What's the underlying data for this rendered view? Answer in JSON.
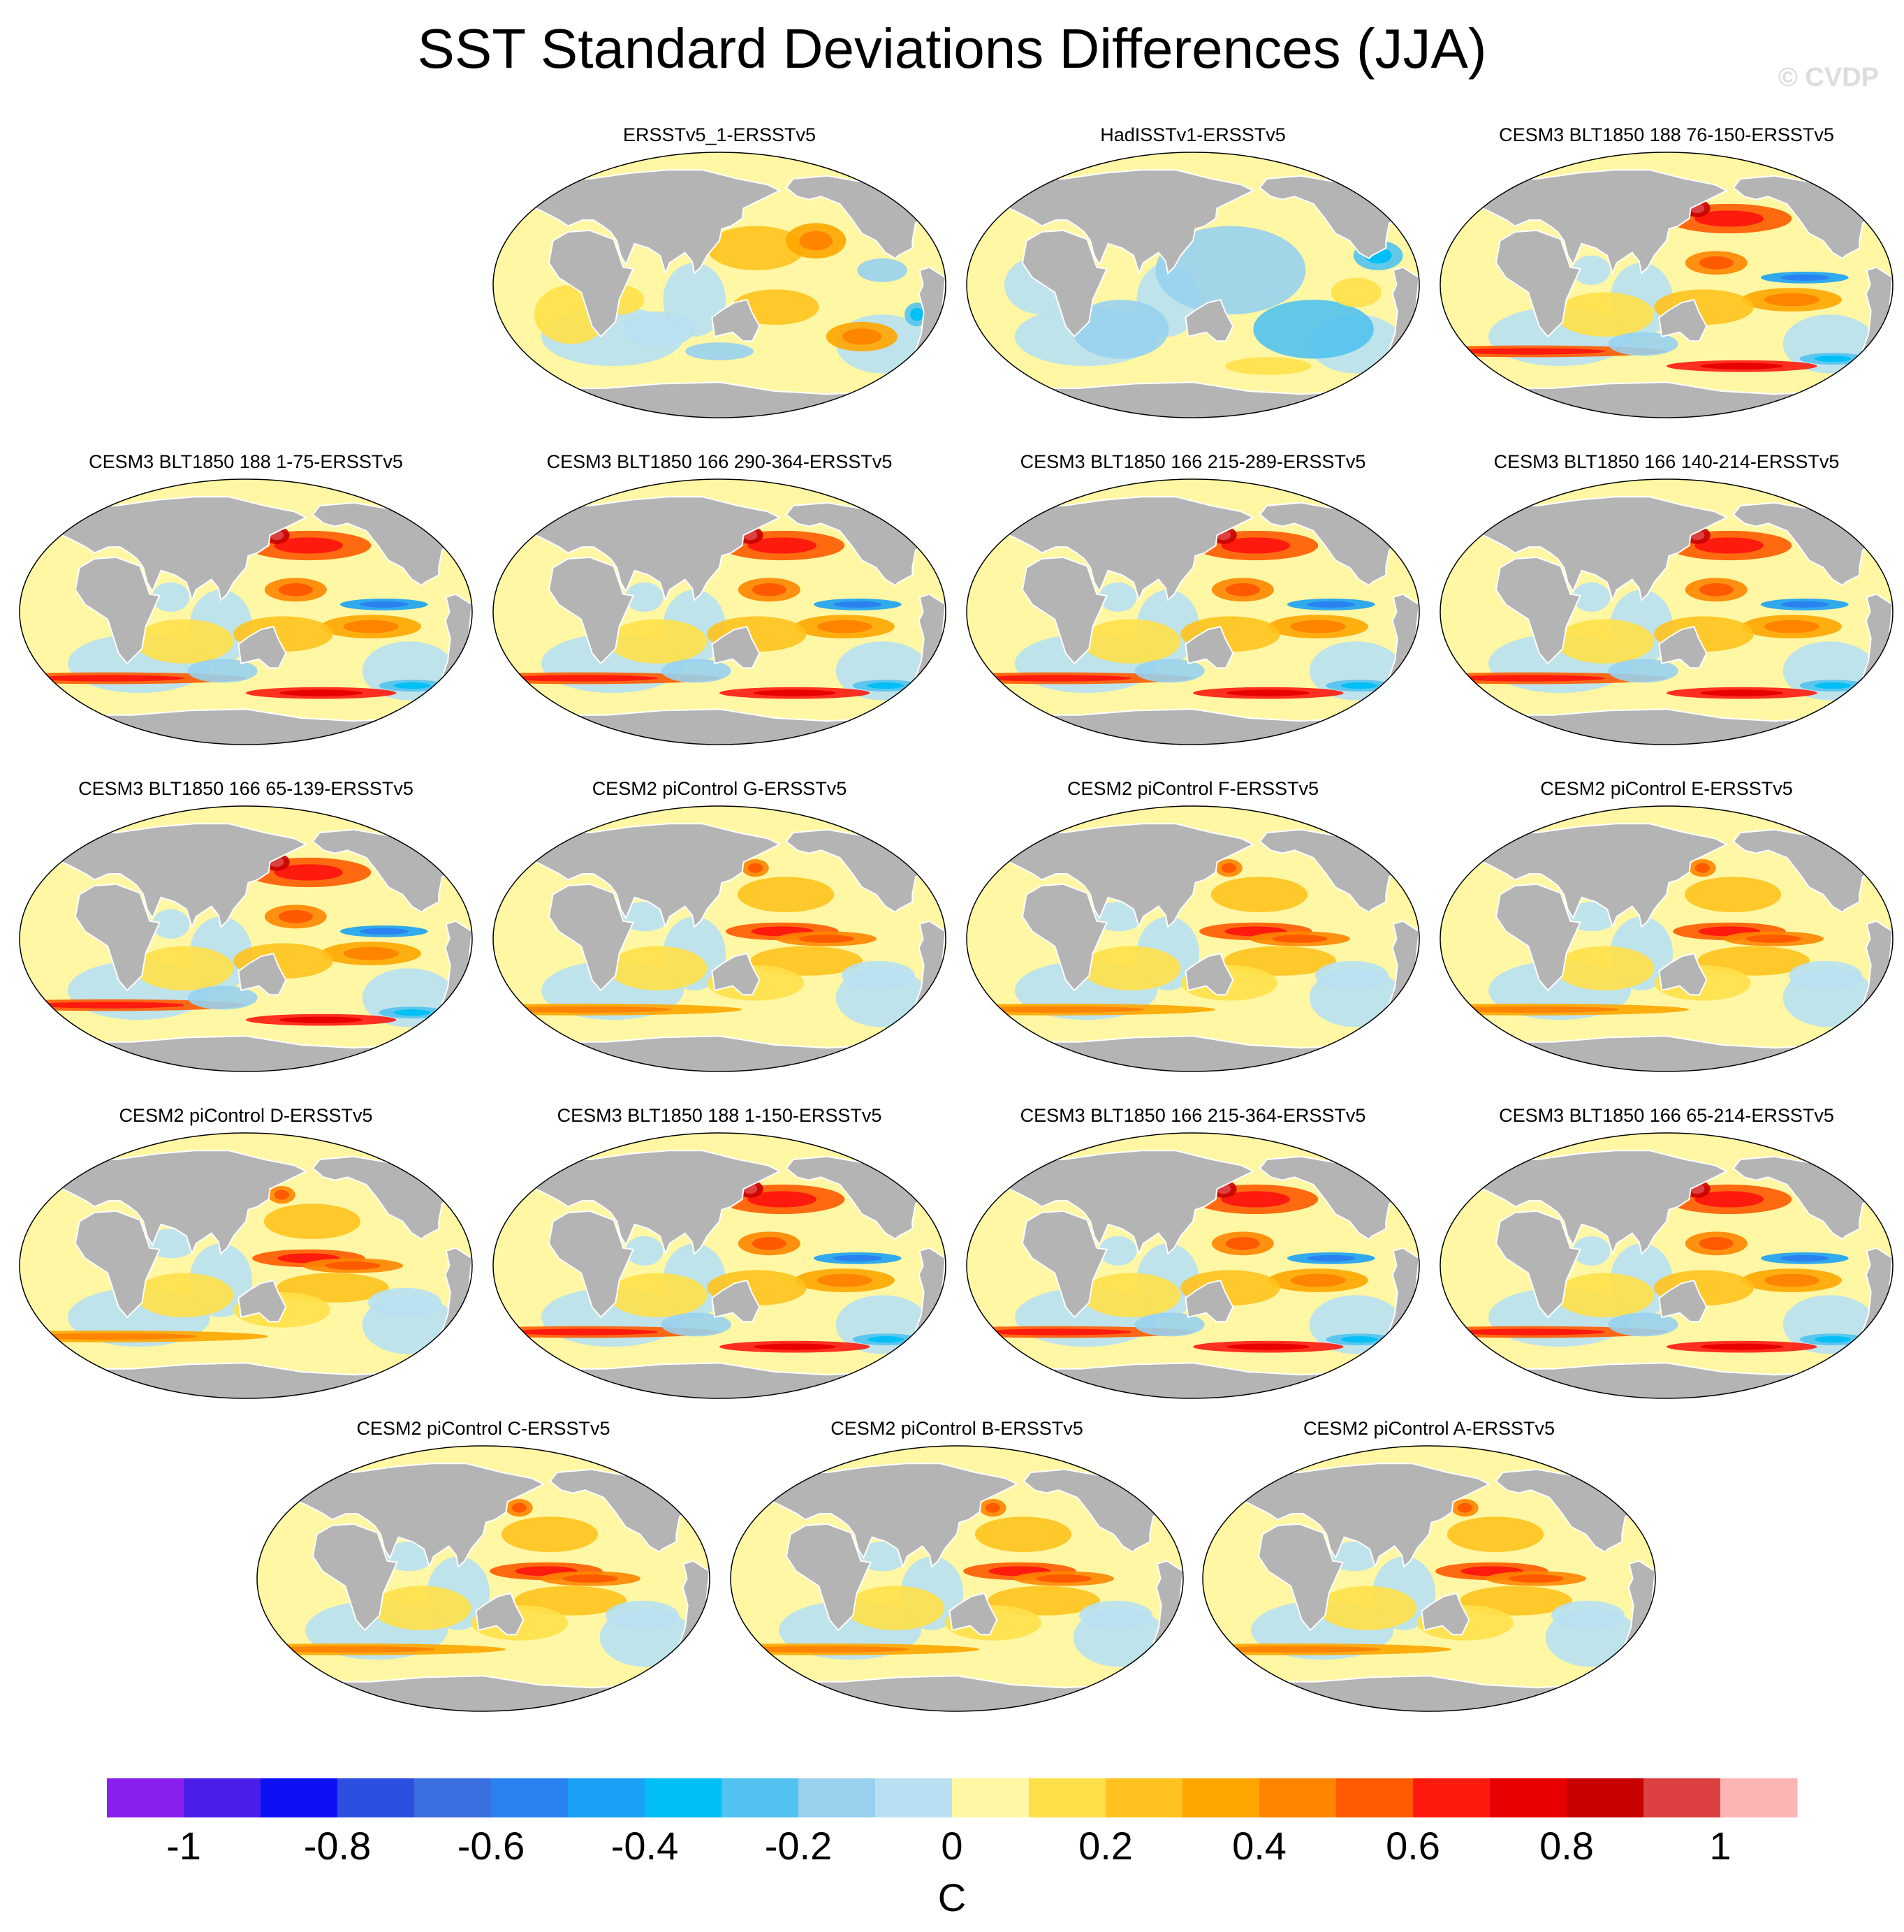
{
  "title": "SST Standard Deviations Differences (JJA)",
  "watermark": "© CVDP",
  "colors": {
    "land": "#b4b4b4",
    "ocean_neutral": "#fff7a4",
    "outline": "#000000"
  },
  "panels": [
    {
      "title": "ERSSTv5_1-ERSSTv5",
      "pattern": "obs_ersst"
    },
    {
      "title": "HadISSTv1-ERSSTv5",
      "pattern": "obs_hadisst"
    },
    {
      "title": "CESM3 BLT1850 188 76-150-ERSSTv5",
      "pattern": "cesm3"
    },
    {
      "title": "CESM3 BLT1850 188 1-75-ERSSTv5",
      "pattern": "cesm3"
    },
    {
      "title": "CESM3 BLT1850 166 290-364-ERSSTv5",
      "pattern": "cesm3"
    },
    {
      "title": "CESM3 BLT1850 166 215-289-ERSSTv5",
      "pattern": "cesm3"
    },
    {
      "title": "CESM3 BLT1850 166 140-214-ERSSTv5",
      "pattern": "cesm3"
    },
    {
      "title": "CESM3 BLT1850 166 65-139-ERSSTv5",
      "pattern": "cesm3"
    },
    {
      "title": "CESM2 piControl G-ERSSTv5",
      "pattern": "cesm2"
    },
    {
      "title": "CESM2 piControl F-ERSSTv5",
      "pattern": "cesm2"
    },
    {
      "title": "CESM2 piControl E-ERSSTv5",
      "pattern": "cesm2"
    },
    {
      "title": "CESM2 piControl D-ERSSTv5",
      "pattern": "cesm2"
    },
    {
      "title": "CESM3 BLT1850 188 1-150-ERSSTv5",
      "pattern": "cesm3"
    },
    {
      "title": "CESM3 BLT1850 166 215-364-ERSSTv5",
      "pattern": "cesm3"
    },
    {
      "title": "CESM3 BLT1850 166 65-214-ERSSTv5",
      "pattern": "cesm3"
    },
    {
      "title": "CESM2 piControl C-ERSSTv5",
      "pattern": "cesm2"
    },
    {
      "title": "CESM2 piControl B-ERSSTv5",
      "pattern": "cesm2"
    },
    {
      "title": "CESM2 piControl A-ERSSTv5",
      "pattern": "cesm2"
    }
  ],
  "colorbar": {
    "unit": "C",
    "min": -1.1,
    "max": 1.1,
    "interval": 0.1,
    "tick_labels": [
      "-1",
      "-0.8",
      "-0.6",
      "-0.4",
      "-0.2",
      "0",
      "0.2",
      "0.4",
      "0.6",
      "0.8",
      "1"
    ],
    "tick_values": [
      -1,
      -0.8,
      -0.6,
      -0.4,
      -0.2,
      0,
      0.2,
      0.4,
      0.6,
      0.8,
      1
    ],
    "colors": [
      "#8a20ee",
      "#4a1ee8",
      "#0d10f5",
      "#2c4fe0",
      "#3a6fe2",
      "#2a82f0",
      "#1aa0f5",
      "#00bff5",
      "#52c2f0",
      "#98d0ee",
      "#b8e0f2",
      "#fff7a4",
      "#ffe04a",
      "#ffc21e",
      "#ffa500",
      "#ff8400",
      "#ff5a00",
      "#ff1a0e",
      "#e80000",
      "#c80000",
      "#dd4040",
      "#ffb4b4"
    ]
  }
}
